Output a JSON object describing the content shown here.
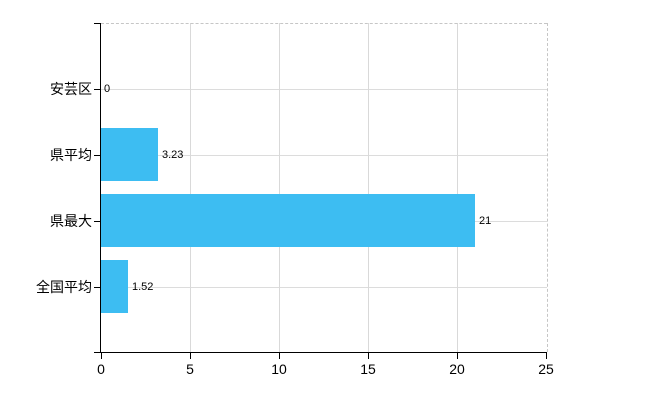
{
  "chart_data": {
    "type": "bar",
    "orientation": "horizontal",
    "categories": [
      "安芸区",
      "県平均",
      "県最大",
      "全国平均"
    ],
    "values": [
      0,
      3.23,
      21,
      1.52
    ],
    "value_labels": [
      "0",
      "3.23",
      "21",
      "1.52"
    ],
    "x_ticks": [
      "0",
      "5",
      "10",
      "15",
      "20",
      "25"
    ],
    "x_tick_values": [
      0,
      5,
      10,
      15,
      20,
      25
    ],
    "xlim": [
      0,
      25
    ],
    "grid": true,
    "legend_position": "none",
    "colors": {
      "bar": "#3dbdf2",
      "gridline": "#dcdcdc",
      "dashed_border": "#c6c6c6",
      "axis": "#000000",
      "text": "#000000"
    }
  }
}
